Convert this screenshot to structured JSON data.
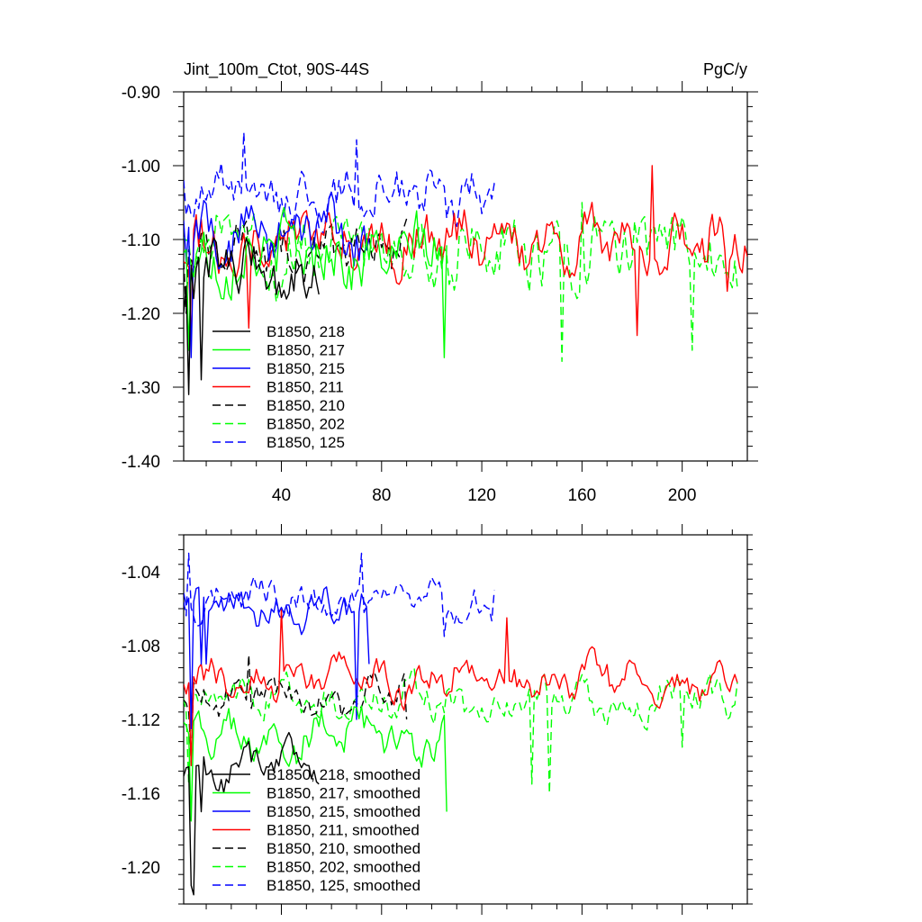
{
  "figure": {
    "title": "Jint_100m_Ctot, 90S-44S",
    "units": "PgC/y"
  },
  "chart_data": [
    {
      "type": "line",
      "name": "annual",
      "title": "Jint_100m_Ctot, 90S-44S",
      "units_label": "PgC/y",
      "xlabel": "",
      "ylabel": "",
      "xlim": [
        1,
        226
      ],
      "ylim": [
        -1.4,
        -0.9
      ],
      "x_ticks": [
        40,
        80,
        120,
        160,
        200
      ],
      "y_ticks": [
        -1.4,
        -1.3,
        -1.2,
        -1.1,
        -1.0,
        -0.9
      ],
      "y_tick_labels": [
        "-1.40",
        "-1.30",
        "-1.20",
        "-1.10",
        "-1.00",
        "-0.90"
      ],
      "legend": {
        "placement": "lower-left"
      },
      "series": [
        {
          "name": "B1850, 218",
          "color": "#000000",
          "dash": "solid",
          "length": 55,
          "base": -1.14,
          "amp": 0.03,
          "noise": 0.055,
          "seed": 3,
          "anchors": [
            [
              1,
              -1.2
            ],
            [
              3,
              -1.31
            ],
            [
              5,
              -1.18
            ],
            [
              8,
              -1.29
            ]
          ]
        },
        {
          "name": "B1850, 217",
          "color": "#00ff00",
          "dash": "solid",
          "length": 106,
          "base": -1.12,
          "amp": 0.025,
          "noise": 0.06,
          "seed": 11,
          "anchors": [
            [
              3,
              -1.25
            ],
            [
              105,
              -1.26
            ]
          ]
        },
        {
          "name": "B1850, 215",
          "color": "#0000ff",
          "dash": "solid",
          "length": 75,
          "base": -1.09,
          "amp": 0.03,
          "noise": 0.055,
          "seed": 17,
          "anchors": [
            [
              2,
              -1.13
            ],
            [
              4,
              -1.26
            ]
          ]
        },
        {
          "name": "B1850, 211",
          "color": "#ff0000",
          "dash": "solid",
          "length": 226,
          "base": -1.105,
          "amp": 0.025,
          "noise": 0.05,
          "seed": 23,
          "anchors": [
            [
              4,
              -1.24
            ],
            [
              27,
              -1.22
            ],
            [
              182,
              -1.23
            ],
            [
              188,
              -1.0
            ],
            [
              218,
              -1.17
            ]
          ]
        },
        {
          "name": "B1850, 210",
          "color": "#000000",
          "dash": "dashed",
          "length": 90,
          "base": -1.12,
          "amp": 0.025,
          "noise": 0.05,
          "seed": 31,
          "anchors": [
            [
              2,
              -1.2
            ]
          ]
        },
        {
          "name": "B1850, 202",
          "color": "#00ff00",
          "dash": "dashed",
          "length": 222,
          "base": -1.115,
          "amp": 0.03,
          "noise": 0.065,
          "seed": 41,
          "anchors": [
            [
              152,
              -1.265
            ],
            [
              204,
              -1.25
            ],
            [
              160,
              -1.05
            ]
          ]
        },
        {
          "name": "B1850, 125",
          "color": "#0000ff",
          "dash": "dashed",
          "length": 126,
          "base": -1.04,
          "amp": 0.025,
          "noise": 0.045,
          "seed": 53,
          "anchors": [
            [
              1,
              -1.02
            ],
            [
              25,
              -0.955
            ],
            [
              70,
              -0.965
            ]
          ]
        }
      ]
    },
    {
      "type": "line",
      "name": "smoothed",
      "xlabel": "",
      "ylabel": "",
      "xlim": [
        1,
        226
      ],
      "ylim": [
        -1.22,
        -1.02
      ],
      "x_ticks": [
        40,
        80,
        120,
        160,
        200
      ],
      "y_ticks": [
        -1.2,
        -1.16,
        -1.12,
        -1.08,
        -1.04
      ],
      "y_tick_labels": [
        "-1.20",
        "-1.16",
        "-1.12",
        "-1.08",
        "-1.04"
      ],
      "legend": {
        "placement": "lower-left"
      },
      "series": [
        {
          "name": "B1850, 218, smoothed",
          "color": "#000000",
          "dash": "solid",
          "length": 55,
          "base": -1.145,
          "amp": 0.012,
          "noise": 0.012,
          "seed": 5,
          "anchors": [
            [
              4,
              -1.21
            ],
            [
              5,
              -1.215
            ],
            [
              8,
              -1.17
            ],
            [
              10,
              -1.15
            ],
            [
              55,
              -1.155
            ]
          ]
        },
        {
          "name": "B1850, 217, smoothed",
          "color": "#00ff00",
          "dash": "solid",
          "length": 106,
          "base": -1.13,
          "amp": 0.012,
          "noise": 0.014,
          "seed": 13,
          "anchors": [
            [
              4,
              -1.175
            ],
            [
              106,
              -1.17
            ]
          ]
        },
        {
          "name": "B1850, 215, smoothed",
          "color": "#0000ff",
          "dash": "solid",
          "length": 75,
          "base": -1.06,
          "amp": 0.01,
          "noise": 0.012,
          "seed": 19,
          "anchors": [
            [
              4,
              -1.125
            ],
            [
              8,
              -1.09
            ],
            [
              10,
              -1.09
            ],
            [
              70,
              -1.12
            ],
            [
              75,
              -1.09
            ]
          ]
        },
        {
          "name": "B1850, 211, smoothed",
          "color": "#ff0000",
          "dash": "solid",
          "length": 222,
          "base": -1.098,
          "amp": 0.01,
          "noise": 0.012,
          "seed": 29,
          "anchors": [
            [
              4,
              -1.145
            ],
            [
              8,
              -1.09
            ],
            [
              40,
              -1.06
            ],
            [
              130,
              -1.065
            ],
            [
              222,
              -1.1
            ]
          ]
        },
        {
          "name": "B1850, 210, smoothed",
          "color": "#000000",
          "dash": "dashed",
          "length": 90,
          "base": -1.108,
          "amp": 0.01,
          "noise": 0.012,
          "seed": 37,
          "anchors": [
            [
              4,
              -1.14
            ],
            [
              27,
              -1.085
            ],
            [
              90,
              -1.12
            ]
          ]
        },
        {
          "name": "B1850, 202, smoothed",
          "color": "#00ff00",
          "dash": "dashed",
          "length": 222,
          "base": -1.11,
          "amp": 0.01,
          "noise": 0.013,
          "seed": 43,
          "anchors": [
            [
              3,
              -1.155
            ],
            [
              140,
              -1.155
            ],
            [
              147,
              -1.16
            ],
            [
              200,
              -1.135
            ],
            [
              222,
              -1.1
            ]
          ]
        },
        {
          "name": "B1850, 125, smoothed",
          "color": "#0000ff",
          "dash": "dashed",
          "length": 125,
          "base": -1.055,
          "amp": 0.008,
          "noise": 0.012,
          "seed": 59,
          "anchors": [
            [
              3,
              -1.03
            ],
            [
              72,
              -1.03
            ],
            [
              105,
              -1.075
            ],
            [
              125,
              -1.05
            ]
          ]
        }
      ]
    }
  ]
}
